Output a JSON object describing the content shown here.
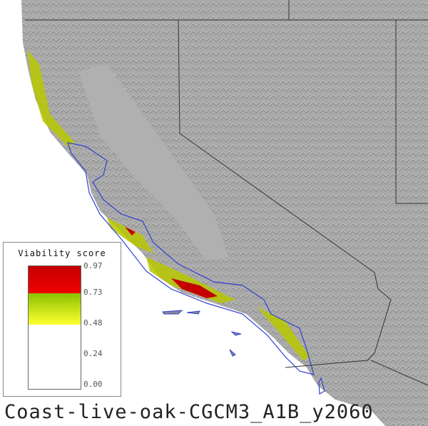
{
  "map": {
    "title": "Coast-live-oak-CGCM3_A1B_y2060",
    "colors": {
      "land": "#a8a8a8",
      "ocean": "#ffffff",
      "border": "#333333",
      "range_outline": "#3040d0",
      "high": "#c40000",
      "mid": "#a8c800",
      "low": "#ffff30"
    }
  },
  "legend": {
    "title": "Viability score",
    "ticks": [
      "0.97",
      "0.73",
      "0.48",
      "0.24",
      "0.00"
    ]
  }
}
